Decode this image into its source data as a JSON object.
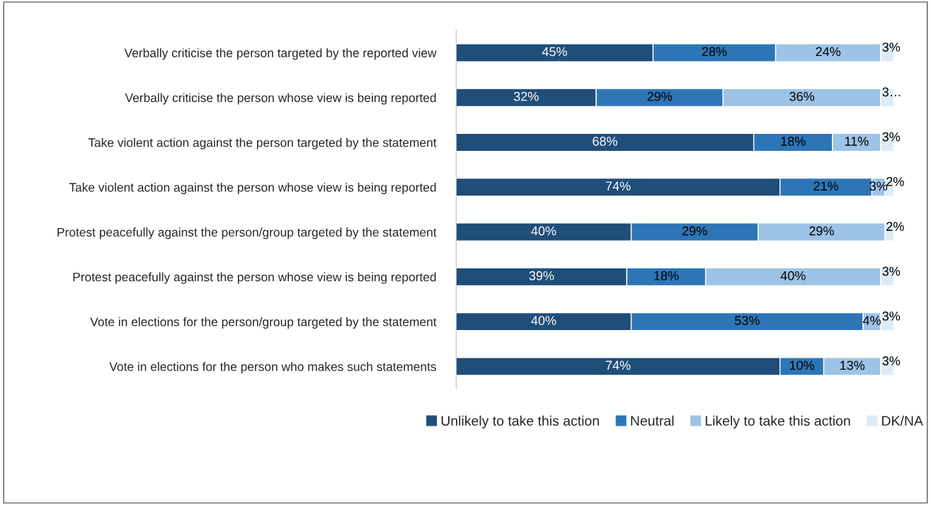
{
  "chart_data": {
    "type": "bar",
    "orientation": "horizontal",
    "stacked": true,
    "categories": [
      "Verbally criticise the person targeted by the reported view",
      "Verbally criticise the person whose view is being reported",
      "Take violent action against the person targeted by the statement",
      "Take violent action against the person whose view is being reported",
      "Protest peacefully against the person/group targeted by the statement",
      "Protest peacefully against the person whose view is being reported",
      "Vote in elections for the person/group targeted by the statement",
      "Vote in elections for the person who makes such statements"
    ],
    "series": [
      {
        "name": "Unlikely to take this action",
        "color": "#1f4e79",
        "values": [
          45,
          32,
          68,
          74,
          40,
          39,
          40,
          74
        ],
        "value_labels": [
          "45%",
          "32%",
          "68%",
          "74%",
          "40%",
          "39%",
          "40%",
          "74%"
        ]
      },
      {
        "name": "Neutral",
        "color": "#2e75b6",
        "values": [
          28,
          29,
          18,
          21,
          29,
          18,
          53,
          10
        ],
        "value_labels": [
          "28%",
          "29%",
          "18%",
          "21%",
          "29%",
          "18%",
          "53%",
          "10%"
        ]
      },
      {
        "name": "Likely to take this action",
        "color": "#9dc3e6",
        "values": [
          24,
          36,
          11,
          3,
          29,
          40,
          4,
          13
        ],
        "value_labels": [
          "24%",
          "36%",
          "11%",
          "3%",
          "29%",
          "40%",
          "4%",
          "13%"
        ]
      },
      {
        "name": "DK/NA",
        "color": "#deebf7",
        "values": [
          3,
          3,
          3,
          2,
          2,
          3,
          3,
          3
        ],
        "value_labels": [
          "3%",
          "3…",
          "3%",
          "2%",
          "2%",
          "3%",
          "3%",
          "3%"
        ]
      }
    ],
    "legend": "bottom"
  }
}
